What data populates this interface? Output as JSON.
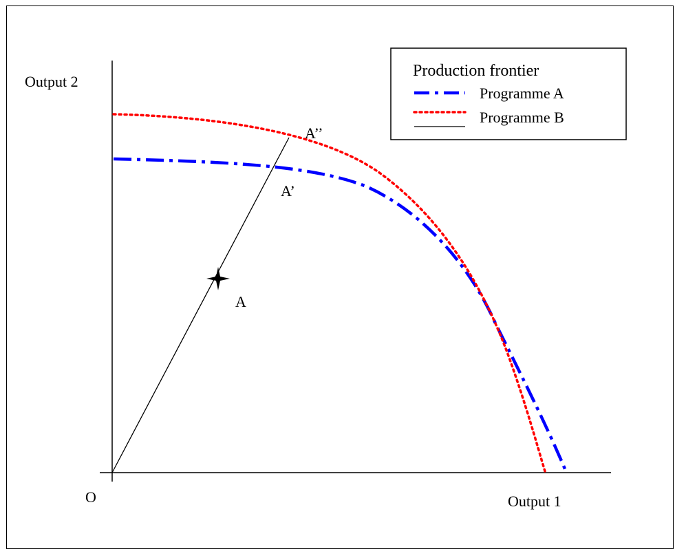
{
  "labels": {
    "y_axis": "Output 2",
    "x_axis": "Output 1",
    "origin": "O",
    "point_a": "A",
    "point_a_prime": "A’",
    "point_a_double_prime": "A’’"
  },
  "legend": {
    "title": "Production frontier",
    "items": [
      {
        "label": "Programme A",
        "color": "#0000ff",
        "style": "dash-dot"
      },
      {
        "label": "Programme B",
        "color": "#ff0000",
        "style": "dotted"
      },
      {
        "label": "",
        "color": "#000000",
        "style": "solid"
      }
    ]
  },
  "colors": {
    "programme_a": "#0000ff",
    "programme_b": "#ff0000",
    "ray": "#000000",
    "axes": "#000000"
  }
}
